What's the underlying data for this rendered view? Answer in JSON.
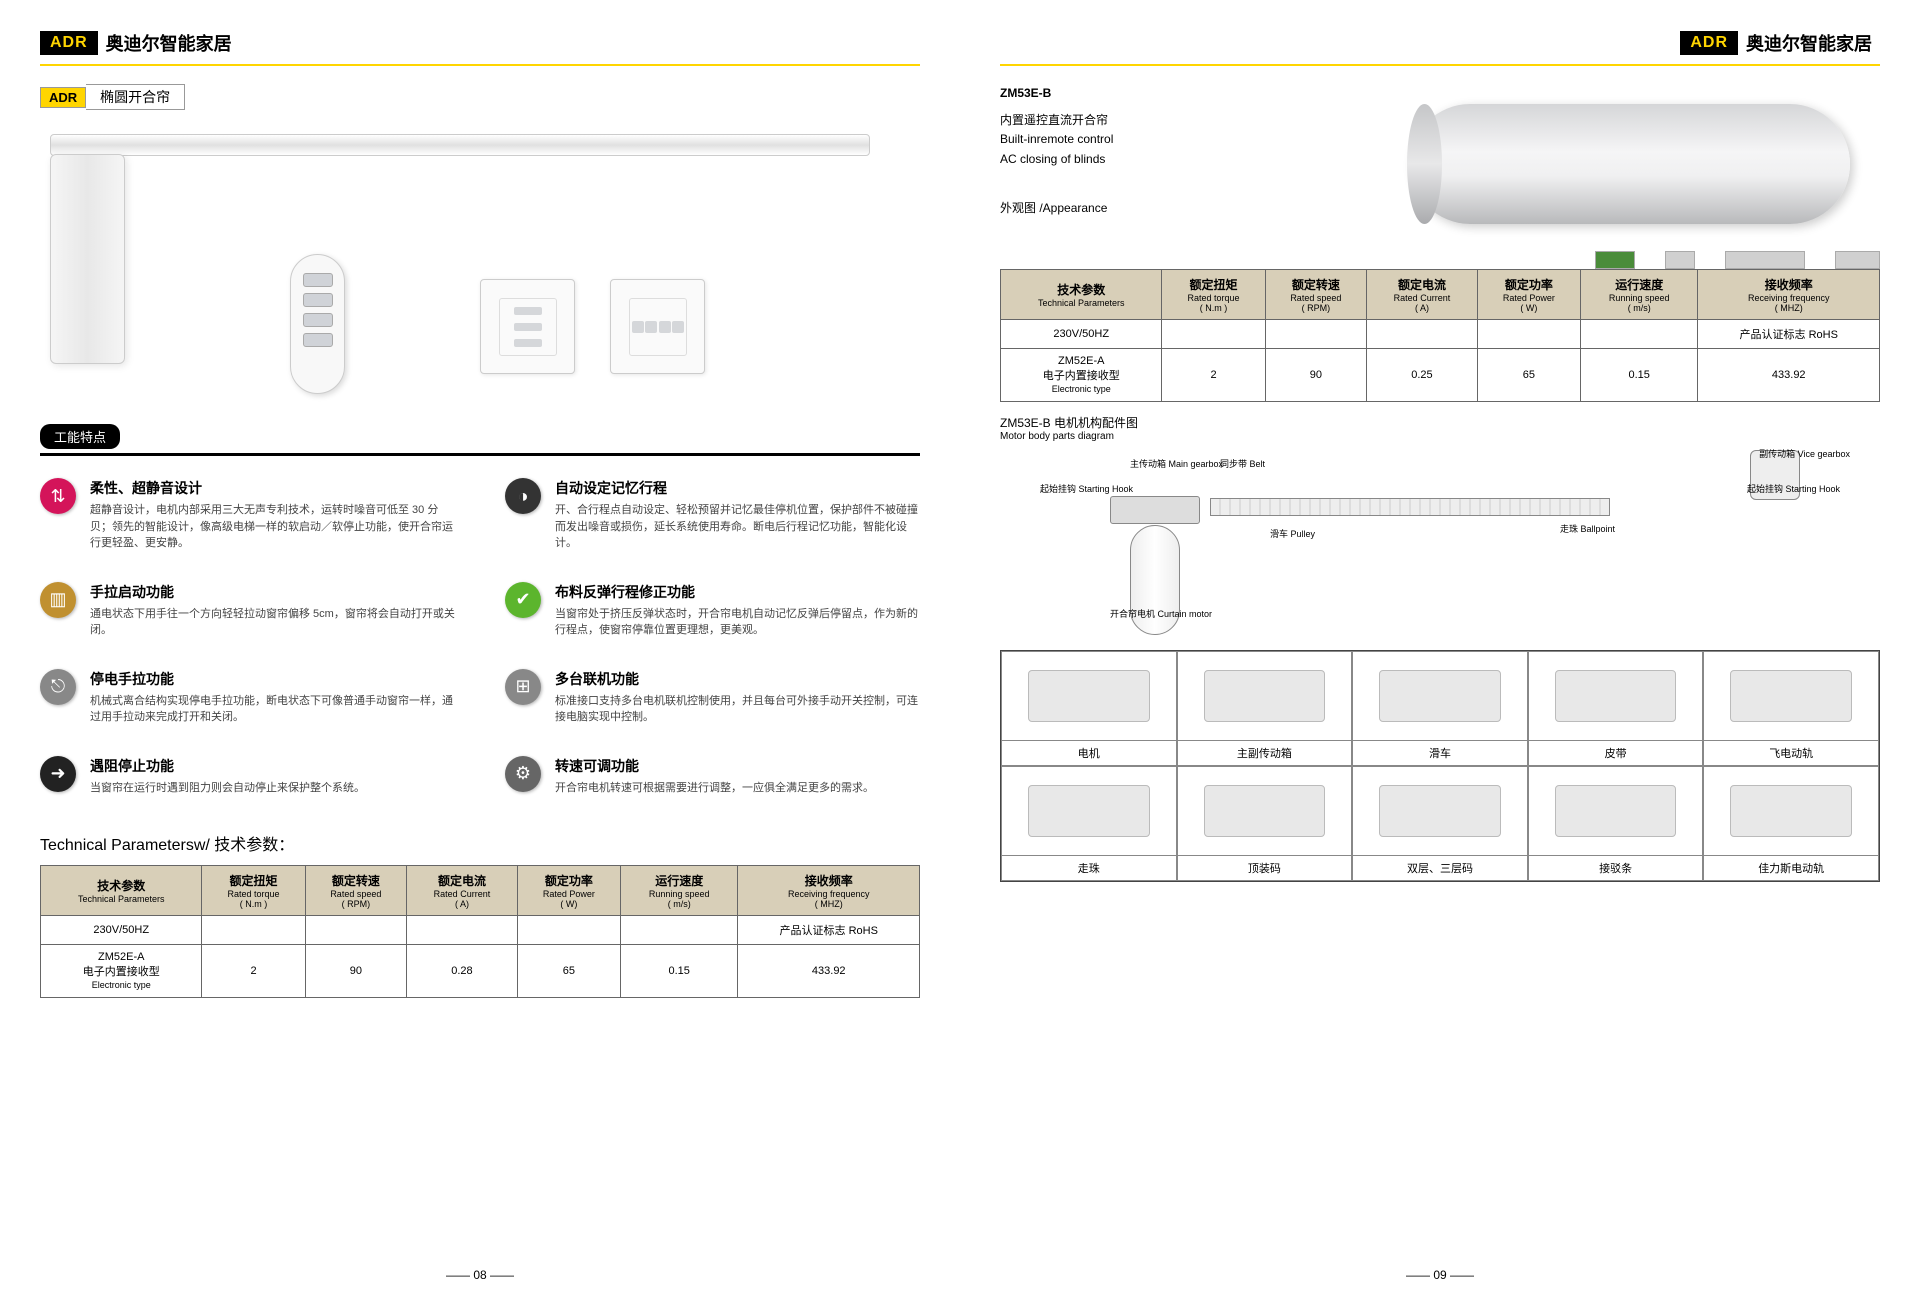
{
  "brand_badge": "ADR",
  "brand_name": "奥迪尔智能家居",
  "subtitle": "椭圆开合帘",
  "features_heading": "工能特点",
  "features": [
    {
      "icon_bg": "#d4145a",
      "glyph": "⇅",
      "title": "柔性、超静音设计",
      "desc": "超静音设计，电机内部采用三大无声专利技术，运转时噪音可低至 30 分贝；领先的智能设计，像高级电梯一样的软启动／软停止功能，使开合帘运行更轻盈、更安静。"
    },
    {
      "icon_bg": "#333333",
      "glyph": "◑",
      "title": "自动设定记忆行程",
      "desc": "开、合行程点自动设定、轻松预留并记忆最佳停机位置，保护部件不被碰撞而发出噪音或损伤，延长系统使用寿命。断电后行程记忆功能，智能化设计。"
    },
    {
      "icon_bg": "#c09030",
      "glyph": "▥",
      "title": "手拉启动功能",
      "desc": "通电状态下用手往一个方向轻轻拉动窗帘偏移 5cm，窗帘将会自动打开或关闭。"
    },
    {
      "icon_bg": "#5cb52d",
      "glyph": "✔",
      "title": "布料反弹行程修正功能",
      "desc": "当窗帘处于挤压反弹状态时，开合帘电机自动记忆反弹后停留点，作为新的行程点，使窗帘停靠位置更理想，更美观。"
    },
    {
      "icon_bg": "#888888",
      "glyph": "⎋",
      "title": "停电手拉功能",
      "desc": "机械式离合结构实现停电手拉功能，断电状态下可像普通手动窗帘一样，通过用手拉动来完成打开和关闭。"
    },
    {
      "icon_bg": "#888888",
      "glyph": "⊞",
      "title": "多台联机功能",
      "desc": "标准接口支持多台电机联机控制使用，并且每台可外接手动开关控制，可连接电脑实现中控制。"
    },
    {
      "icon_bg": "#222222",
      "glyph": "➜",
      "title": "遇阻停止功能",
      "desc": "当窗帘在运行时遇到阻力则会自动停止来保护整个系统。"
    },
    {
      "icon_bg": "#666666",
      "glyph": "⚙",
      "title": "转速可调功能",
      "desc": "开合帘电机转速可根据需要进行调整，一应俱全满足更多的需求。"
    }
  ],
  "tech_label": "Technical Parametersw/ 技术参数：",
  "tech_headers": [
    {
      "cn": "技术参数",
      "en": "Technical Parameters"
    },
    {
      "cn": "额定扭矩",
      "en": "Rated torque",
      "unit": "( N.m )"
    },
    {
      "cn": "额定转速",
      "en": "Rated speed",
      "unit": "( RPM)"
    },
    {
      "cn": "额定电流",
      "en": "Rated Current",
      "unit": "( A)"
    },
    {
      "cn": "额定功率",
      "en": "Rated Power",
      "unit": "( W)"
    },
    {
      "cn": "运行速度",
      "en": "Running speed",
      "unit": "( m/s)"
    },
    {
      "cn": "接收频率",
      "en": "Receiving frequency",
      "unit": "( MHZ)"
    }
  ],
  "tech_row1": {
    "label": "230V/50HZ",
    "rohs": "产品认证标志 RoHS"
  },
  "tech_row2": {
    "label_cn": "ZM52E-A",
    "label_cn2": "电子内置接收型",
    "label_en": "Electronic  type",
    "vals": [
      "2",
      "90",
      "0.28",
      "65",
      "0.15",
      "433.92"
    ]
  },
  "page_left": "—— 08 ——",
  "right_model": "ZM53E-B",
  "right_desc_cn": "内置遥控直流开合帘",
  "right_desc_en1": "Built-inremote control",
  "right_desc_en2": "AC closing of blinds",
  "right_appearance": "外观图 /Appearance",
  "tech_row2_r": {
    "vals": [
      "2",
      "90",
      "0.25",
      "65",
      "0.15",
      "433.92"
    ]
  },
  "diagram_title_cn": "ZM53E-B 电机机构配件图",
  "diagram_title_en": "Motor body parts diagram",
  "diag_labels": {
    "main_gearbox": "主传动箱\nMain gearbox",
    "belt": "同步带\nBelt",
    "pulley": "滑车\nPulley",
    "ballpoint": "走珠\nBallpoint",
    "vice_gearbox": "副传动箱\nVice gearbox",
    "hook_l": "起始挂钩\nStarting Hook",
    "hook_r": "起始挂钩\nStarting Hook",
    "curtain_motor": "开合帘电机\nCurtain motor"
  },
  "parts": [
    "电机",
    "主副传动箱",
    "滑车",
    "皮带",
    "飞电动轨",
    "走珠",
    "顶装码",
    "双层、三层码",
    "接驳条",
    "佳力斯电动轨"
  ],
  "page_right": "—— 09 ——"
}
